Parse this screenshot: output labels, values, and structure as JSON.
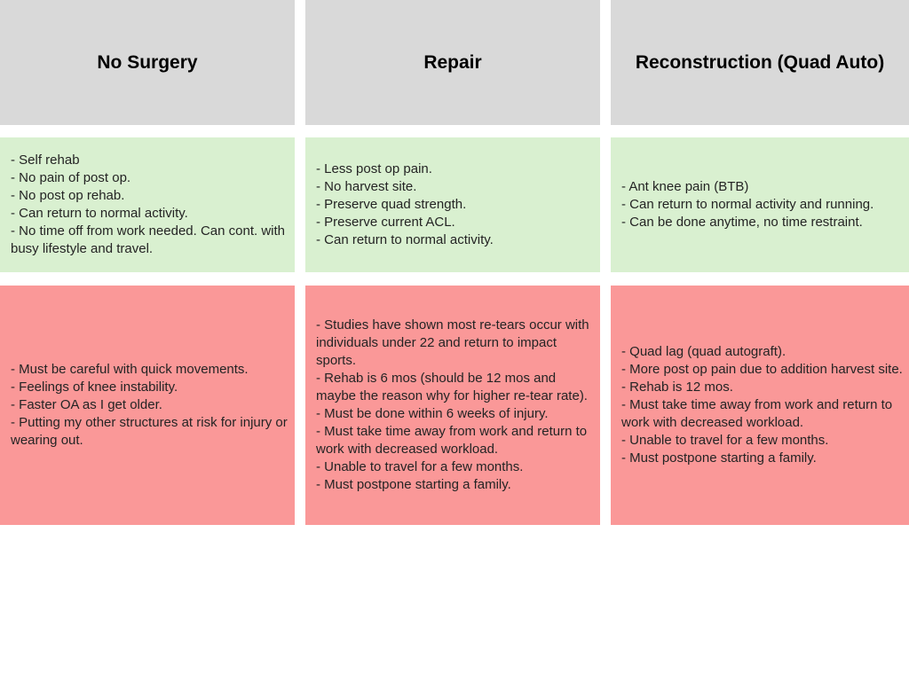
{
  "colors": {
    "page_bg": "#ffffff",
    "header_bg": "#d9d9d9",
    "pros_bg": "#d9f0d0",
    "cons_bg": "#fa9898",
    "heading_text": "#000000",
    "body_text": "#242424"
  },
  "columns": [
    {
      "title": "No Surgery",
      "pros": [
        "- Self rehab",
        "- No pain of post op.",
        "- No post op rehab.",
        "- Can return to normal activity.",
        "- No time off from work needed. Can cont. with busy lifestyle and travel."
      ],
      "cons": [
        "- Must be careful with quick movements.",
        "- Feelings of knee instability.",
        "- Faster OA as I get older.",
        "- Putting my other structures at risk for injury or wearing out."
      ]
    },
    {
      "title": "Repair",
      "pros": [
        "- Less post op pain.",
        "- No harvest site.",
        "- Preserve quad strength.",
        "- Preserve current ACL.",
        "- Can return to normal activity."
      ],
      "cons": [
        "- Studies have shown most re-tears occur with individuals under 22 and return to impact sports.",
        "- Rehab is 6 mos (should be 12 mos and maybe the reason why for higher re-tear rate).",
        "- Must be done within 6 weeks of injury.",
        "- Must take time away from work and return to work with decreased workload.",
        "- Unable to travel for a few months.",
        "- Must postpone starting a family."
      ]
    },
    {
      "title": "Reconstruction (Quad Auto)",
      "pros": [
        "- Ant knee pain (BTB)",
        "- Can return to normal activity and running.",
        "- Can be done anytime, no time restraint."
      ],
      "cons": [
        "- Quad lag (quad autograft).",
        "- More post op pain due to addition harvest site.",
        "- Rehab is 12 mos.",
        "- Must take time away from work and return to work with decreased workload.",
        "- Unable to travel for a few months.",
        "- Must postpone starting a family."
      ]
    }
  ]
}
